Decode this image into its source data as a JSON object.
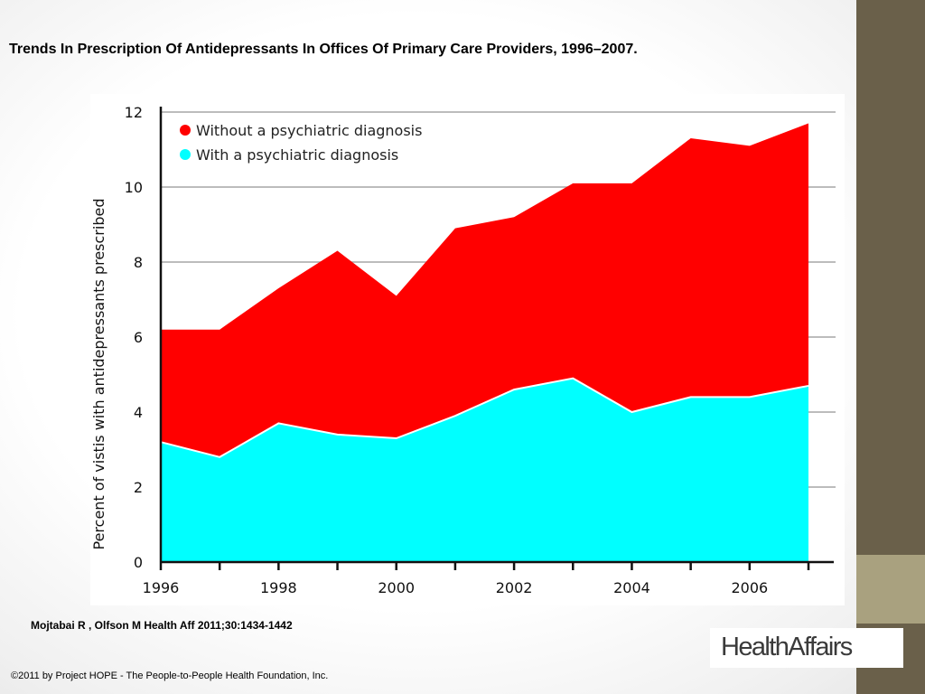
{
  "slide": {
    "title": "Trends In Prescription Of Antidepressants In Offices Of Primary Care Providers, 1996–2007.",
    "citation": "Mojtabai R , Olfson M Health Aff 2011;30:1434-1442",
    "copyright": "©2011 by Project HOPE - The People-to-People Health Foundation, Inc.",
    "logo_text": "HealthAffairs"
  },
  "colors": {
    "without_diagnosis": "#ff0000",
    "with_diagnosis": "#00ffff",
    "sidebar": "#6a604a",
    "sidebar_accent": "#a9a17f"
  },
  "chart_data": {
    "type": "area",
    "stacked": true,
    "title": "",
    "xlabel": "",
    "ylabel": "Percent of vistis with antidepressants prescribed",
    "x": [
      1996,
      1997,
      1998,
      1999,
      2000,
      2001,
      2002,
      2003,
      2004,
      2005,
      2006,
      2007
    ],
    "x_tick_labels": [
      "1996",
      "1998",
      "2000",
      "2002",
      "2004",
      "2006"
    ],
    "y_ticks": [
      0,
      2,
      4,
      6,
      8,
      10,
      12
    ],
    "ylim": [
      0,
      12
    ],
    "xlim": [
      1996,
      2007
    ],
    "grid": "horizontal",
    "legend_position": "top-left",
    "series": [
      {
        "name": "With a psychiatric diagnosis",
        "color": "#00ffff",
        "values": [
          3.2,
          2.8,
          3.7,
          3.4,
          3.3,
          3.9,
          4.6,
          4.9,
          4.0,
          4.4,
          4.4,
          4.7
        ]
      },
      {
        "name": "Without a psychiatric diagnosis",
        "color": "#ff0000",
        "values": [
          3.0,
          3.4,
          3.6,
          4.9,
          3.8,
          5.0,
          4.6,
          5.2,
          6.1,
          6.9,
          6.7,
          7.0
        ]
      }
    ]
  }
}
